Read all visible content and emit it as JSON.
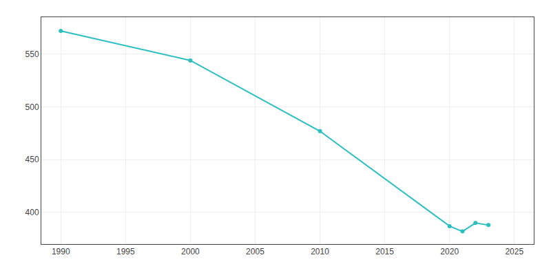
{
  "chart_data": {
    "type": "line",
    "x": [
      1990,
      2000,
      2010,
      2020,
      2021,
      2022,
      2023
    ],
    "values": [
      572,
      544,
      477,
      387,
      382,
      390,
      388
    ],
    "color": "#2BBFBF",
    "marker": "circle",
    "xlim": [
      1988.5,
      2026.5
    ],
    "ylim": [
      370,
      585
    ],
    "xticks": [
      1990,
      1995,
      2000,
      2005,
      2010,
      2015,
      2020,
      2025
    ],
    "yticks": [
      400,
      450,
      500,
      550
    ],
    "grid": true
  }
}
